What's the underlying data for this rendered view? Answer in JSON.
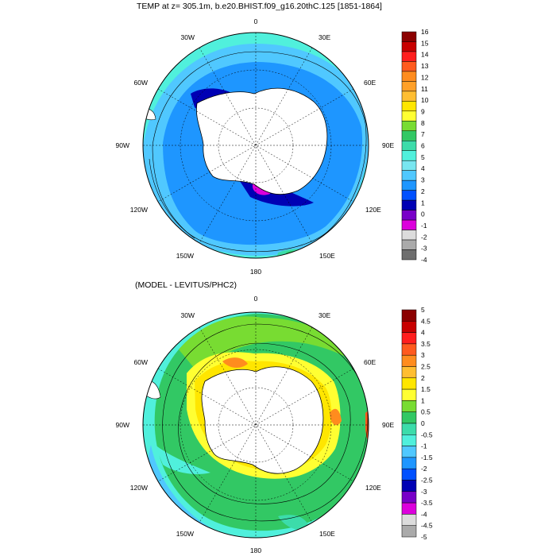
{
  "panels": [
    {
      "title": "TEMP at z= 305.1m, b.e20.BHIST.f09_g16.20thC.125 [1851-1864]",
      "lon_labels": [
        "0",
        "30E",
        "60E",
        "90E",
        "120E",
        "150E",
        "180",
        "150W",
        "120W",
        "90W",
        "60W",
        "30W"
      ],
      "colorbar": {
        "labels": [
          "16",
          "15",
          "14",
          "13",
          "12",
          "11",
          "10",
          "9",
          "8",
          "7",
          "6",
          "5",
          "4",
          "3",
          "2",
          "1",
          "0",
          "-1",
          "-2",
          "-3",
          "-4"
        ],
        "colors": [
          "#8b0000",
          "#c80000",
          "#ff1e1e",
          "#ff5a1e",
          "#ff8c1e",
          "#ffa028",
          "#ffbe32",
          "#ffe600",
          "#ffff32",
          "#78dc32",
          "#32c864",
          "#3cdcaa",
          "#50f0dc",
          "#78e6f0",
          "#50c8ff",
          "#1e96ff",
          "#0050ff",
          "#0000b4",
          "#7800c8",
          "#dc00dc",
          "#dcdcdc",
          "#aaaaaa",
          "#6e6e6e"
        ]
      }
    },
    {
      "title": "(MODEL - LEVITUS/PHC2)",
      "lon_labels": [
        "0",
        "30E",
        "60E",
        "90E",
        "120E",
        "150E",
        "180",
        "150W",
        "120W",
        "90W",
        "60W",
        "30W"
      ],
      "colorbar": {
        "labels": [
          "5",
          "4.5",
          "4",
          "3.5",
          "3",
          "2.5",
          "2",
          "1.5",
          "1",
          "0.5",
          "0",
          "-0.5",
          "-1",
          "-1.5",
          "-2",
          "-2.5",
          "-3",
          "-3.5",
          "-4",
          "-4.5",
          "-5"
        ],
        "colors": [
          "#8b0000",
          "#c80000",
          "#ff1e1e",
          "#ff5a1e",
          "#ff8c1e",
          "#ffbe32",
          "#ffe600",
          "#ffff32",
          "#78dc32",
          "#32c864",
          "#3cdcaa",
          "#50f0dc",
          "#50c8ff",
          "#1e96ff",
          "#0050ff",
          "#0000b4",
          "#7800c8",
          "#dc00dc",
          "#dcdcdc",
          "#aaaaaa"
        ]
      }
    }
  ]
}
